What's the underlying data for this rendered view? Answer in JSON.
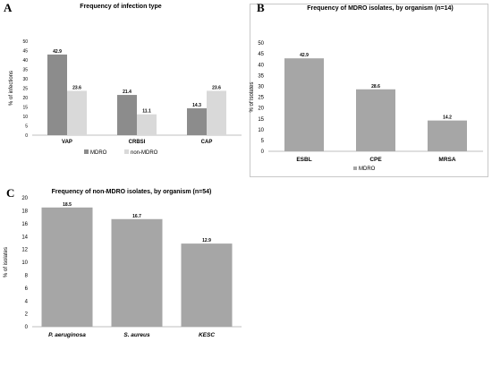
{
  "chart_data": [
    {
      "id": "A",
      "panel_letter": "A",
      "type": "bar",
      "title": "Frequency of infection type",
      "ylabel": "% of infections",
      "categories": [
        "VAP",
        "CRBSI",
        "CAP"
      ],
      "series": [
        {
          "name": "MDRO",
          "values": [
            42.9,
            21.4,
            14.3
          ],
          "color": "#8c8c8c"
        },
        {
          "name": "non-MDRO",
          "values": [
            23.6,
            11.1,
            23.6
          ],
          "color": "#d9d9d9"
        }
      ],
      "ylim": [
        0,
        50
      ],
      "yticks": [
        0,
        5,
        10,
        15,
        20,
        25,
        30,
        35,
        40,
        45,
        50
      ],
      "value_labels": [
        [
          "42.9",
          "21.4",
          "14.3"
        ],
        [
          "23.6",
          "11.1",
          "23.6"
        ]
      ],
      "legend_position": "bottom",
      "grid": false
    },
    {
      "id": "B",
      "panel_letter": "B",
      "type": "bar",
      "title": "Frequency of MDRO isolates, by organism (n=14)",
      "ylabel": "% of isolates",
      "categories": [
        "ESBL",
        "CPE",
        "MRSA"
      ],
      "series": [
        {
          "name": "MDRO",
          "values": [
            42.9,
            28.6,
            14.2
          ],
          "color": "#a6a6a6"
        }
      ],
      "ylim": [
        0,
        50
      ],
      "yticks": [
        0,
        5,
        10,
        15,
        20,
        25,
        30,
        35,
        40,
        45,
        50
      ],
      "value_labels": [
        [
          "42.9",
          "28.6",
          "14.2"
        ]
      ],
      "legend_position": "bottom",
      "grid": false
    },
    {
      "id": "C",
      "panel_letter": "C",
      "type": "bar",
      "title": "Frequency of non-MDRO isolates, by organism (n=54)",
      "ylabel": "% of isolates",
      "categories": [
        "P. aeruginosa",
        "S. aureus",
        "KESC"
      ],
      "series": [
        {
          "values": [
            18.5,
            16.7,
            12.9
          ],
          "color": "#a6a6a6"
        }
      ],
      "ylim": [
        0,
        20
      ],
      "yticks": [
        0,
        2,
        4,
        6,
        8,
        10,
        12,
        14,
        16,
        18,
        20
      ],
      "value_labels": [
        [
          "18.5",
          "16.7",
          "12.9"
        ]
      ],
      "category_italic": true,
      "legend_position": "none",
      "grid": false
    }
  ]
}
